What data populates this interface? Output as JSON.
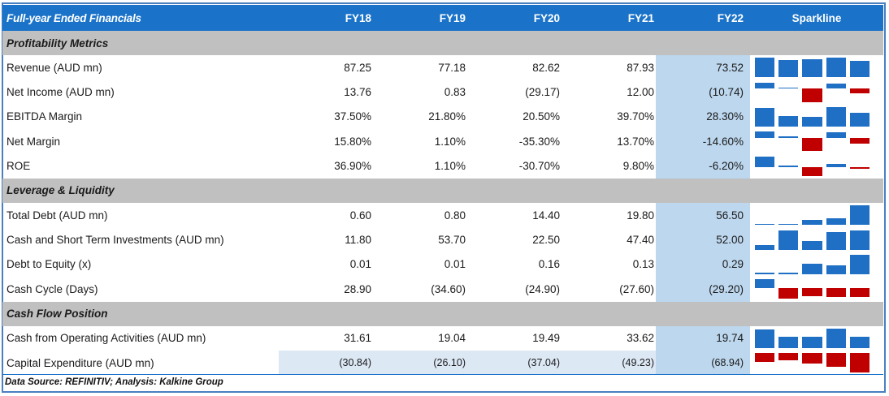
{
  "header": {
    "title": "Full-year Ended Financials",
    "years": [
      "FY18",
      "FY19",
      "FY20",
      "FY21",
      "FY22"
    ],
    "sparkline": "Sparkline"
  },
  "colors": {
    "header_bg": "#1a73c9",
    "section_bg": "#c0c0c0",
    "fy22_bg": "#bdd7ee",
    "spark_pos": "#1f6fc5",
    "spark_neg": "#c00000"
  },
  "sections": [
    {
      "title": "Profitability Metrics",
      "rows": [
        {
          "label": "Revenue (AUD mn)",
          "values": [
            "87.25",
            "77.18",
            "82.62",
            "87.93",
            "73.52"
          ],
          "spark": [
            87.25,
            77.18,
            82.62,
            87.93,
            73.52
          ]
        },
        {
          "label": "Net Income (AUD mn)",
          "values": [
            "13.76",
            "0.83",
            "(29.17)",
            "12.00",
            "(10.74)"
          ],
          "spark": [
            13.76,
            0.83,
            -29.17,
            12.0,
            -10.74
          ]
        },
        {
          "label": "EBITDA Margin",
          "values": [
            "37.50%",
            "21.80%",
            "20.50%",
            "39.70%",
            "28.30%"
          ],
          "spark": [
            37.5,
            21.8,
            20.5,
            39.7,
            28.3
          ]
        },
        {
          "label": "Net Margin",
          "values": [
            "15.80%",
            "1.10%",
            "-35.30%",
            "13.70%",
            "-14.60%"
          ],
          "spark": [
            15.8,
            1.1,
            -35.3,
            13.7,
            -14.6
          ]
        },
        {
          "label": "ROE",
          "values": [
            "36.90%",
            "1.10%",
            "-30.70%",
            "9.80%",
            "-6.20%"
          ],
          "spark": [
            36.9,
            1.1,
            -30.7,
            9.8,
            -6.2
          ]
        }
      ]
    },
    {
      "title": "Leverage & Liquidity",
      "rows": [
        {
          "label": "Total Debt (AUD mn)",
          "values": [
            "0.60",
            "0.80",
            "14.40",
            "19.80",
            "56.50"
          ],
          "spark": [
            0.6,
            0.8,
            14.4,
            19.8,
            56.5
          ]
        },
        {
          "label": "Cash and Short Term Investments (AUD mn)",
          "values": [
            "11.80",
            "53.70",
            "22.50",
            "47.40",
            "52.00"
          ],
          "spark": [
            11.8,
            53.7,
            22.5,
            47.4,
            52.0
          ]
        },
        {
          "label": "Debt to Equity (x)",
          "values": [
            "0.01",
            "0.01",
            "0.16",
            "0.13",
            "0.29"
          ],
          "spark": [
            0.01,
            0.01,
            0.16,
            0.13,
            0.29
          ]
        },
        {
          "label": "Cash Cycle (Days)",
          "values": [
            "28.90",
            "(34.60)",
            "(24.90)",
            "(27.60)",
            "(29.20)"
          ],
          "spark": [
            28.9,
            -34.6,
            -24.9,
            -27.6,
            -29.2
          ]
        }
      ]
    },
    {
      "title": "Cash Flow Position",
      "rows": [
        {
          "label": "Cash from Operating Activities (AUD mn)",
          "values": [
            "31.61",
            "19.04",
            "19.49",
            "33.62",
            "19.74"
          ],
          "spark": [
            31.61,
            19.04,
            19.49,
            33.62,
            19.74
          ]
        },
        {
          "label": "Capital Expenditure (AUD mn)",
          "values": [
            "(30.84)",
            "(26.10)",
            "(37.04)",
            "(49.23)",
            "(68.94)"
          ],
          "spark": [
            -30.84,
            -26.1,
            -37.04,
            -49.23,
            -68.94
          ],
          "shaded": true
        }
      ]
    }
  ],
  "footer": "Data Source: REFINITIV; Analysis: Kalkine Group"
}
